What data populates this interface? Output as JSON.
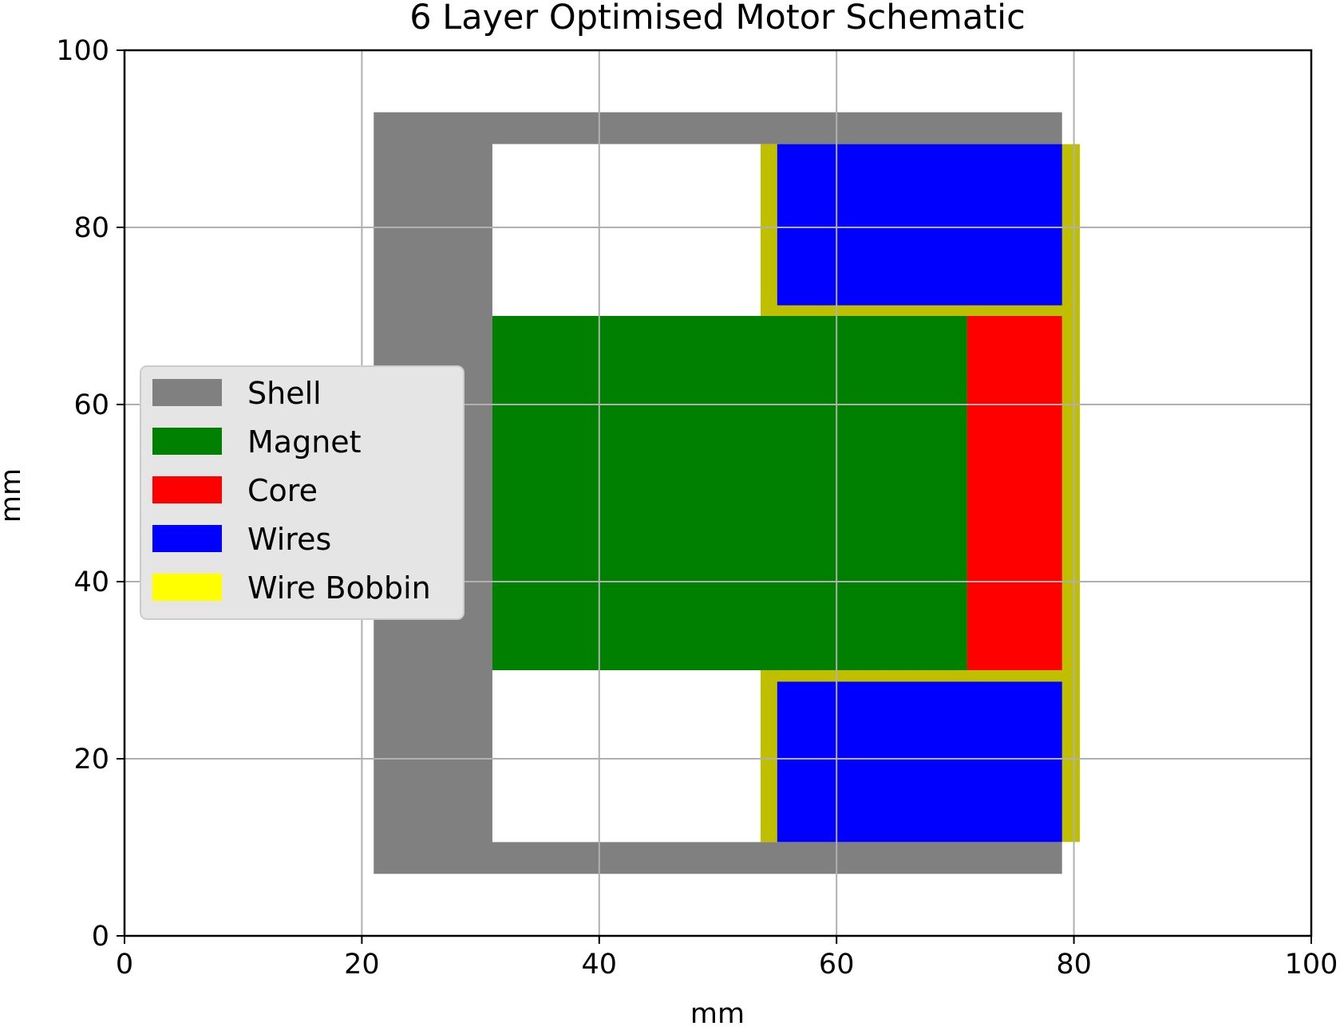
{
  "chart_data": {
    "type": "schematic",
    "title": "6 Layer Optimised Motor Schematic",
    "xlabel": "mm",
    "ylabel": "mm",
    "xlim": [
      0,
      100
    ],
    "ylim": [
      0,
      100
    ],
    "xticks": [
      0,
      20,
      40,
      60,
      80,
      100
    ],
    "yticks": [
      0,
      20,
      40,
      60,
      80,
      100
    ],
    "grid": true,
    "legend": {
      "position": "center-left",
      "entries": [
        {
          "label": "Shell",
          "color": "#808080"
        },
        {
          "label": "Magnet",
          "color": "#008000"
        },
        {
          "label": "Core",
          "color": "#ff0000"
        },
        {
          "label": "Wires",
          "color": "#0000ff"
        },
        {
          "label": "Wire Bobbin",
          "color": "#ffff00"
        }
      ]
    },
    "regions": [
      {
        "layer": "Shell",
        "color": "#808080",
        "x": [
          21,
          79
        ],
        "y": [
          7,
          93
        ]
      },
      {
        "layer": "Cavity",
        "color": "#ffffff",
        "x": [
          31,
          79
        ],
        "y": [
          10.6,
          89.4
        ]
      },
      {
        "layer": "Wire Bobbin",
        "color": "#bfbf00",
        "x": [
          53.6,
          80.5
        ],
        "y": [
          10.6,
          89.4
        ]
      },
      {
        "layer": "Wires",
        "color": "#0000ff",
        "x": [
          55,
          79
        ],
        "y": [
          71.2,
          89.4
        ]
      },
      {
        "layer": "Wires",
        "color": "#0000ff",
        "x": [
          55,
          79
        ],
        "y": [
          10.6,
          28.7
        ]
      },
      {
        "layer": "Cavity",
        "color": "#ffffff",
        "x": [
          31,
          53.6
        ],
        "y": [
          70,
          89.4
        ]
      },
      {
        "layer": "Cavity",
        "color": "#ffffff",
        "x": [
          31,
          53.6
        ],
        "y": [
          10.6,
          30
        ]
      },
      {
        "layer": "Magnet",
        "color": "#008000",
        "x": [
          31,
          71
        ],
        "y": [
          30,
          70
        ]
      },
      {
        "layer": "Core",
        "color": "#ff0000",
        "x": [
          71,
          79
        ],
        "y": [
          30,
          70
        ]
      }
    ]
  }
}
